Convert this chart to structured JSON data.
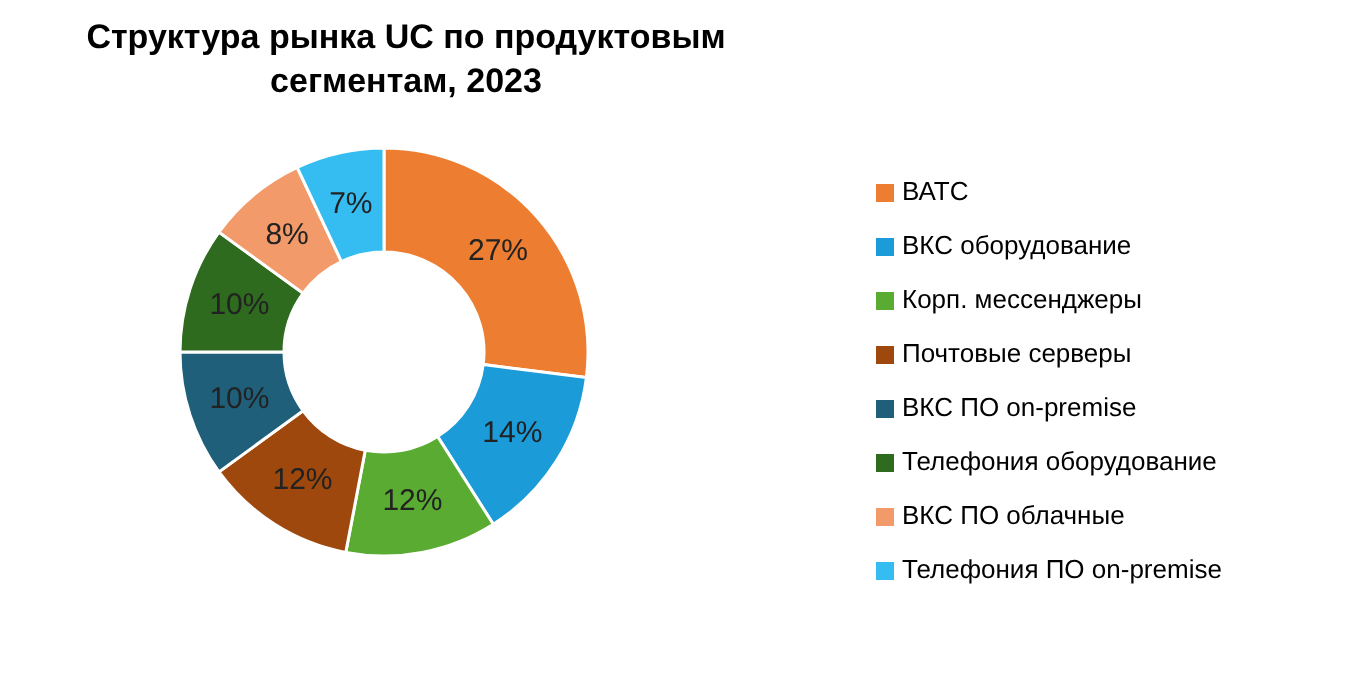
{
  "chart_data": {
    "type": "donut",
    "title": "Структура рынка UC по продуктовым сегментам, 2023",
    "categories": [
      "ВАТС",
      "ВКС оборудование",
      "Корп. мессенджеры",
      "Почтовые серверы",
      "ВКС ПО on-premise",
      "Телефония оборудование",
      "ВКС ПО облачные",
      "Телефония ПО on-premise"
    ],
    "values": [
      27,
      14,
      12,
      12,
      10,
      10,
      8,
      7
    ],
    "colors": [
      "#ed7d31",
      "#1b9bd7",
      "#5aab32",
      "#9e480e",
      "#1f5f7a",
      "#2e6b1f",
      "#f29a6a",
      "#35bdf2"
    ],
    "value_labels": [
      "27%",
      "14%",
      "12%",
      "12%",
      "10%",
      "10%",
      "8%",
      "7%"
    ],
    "legend": "right"
  }
}
